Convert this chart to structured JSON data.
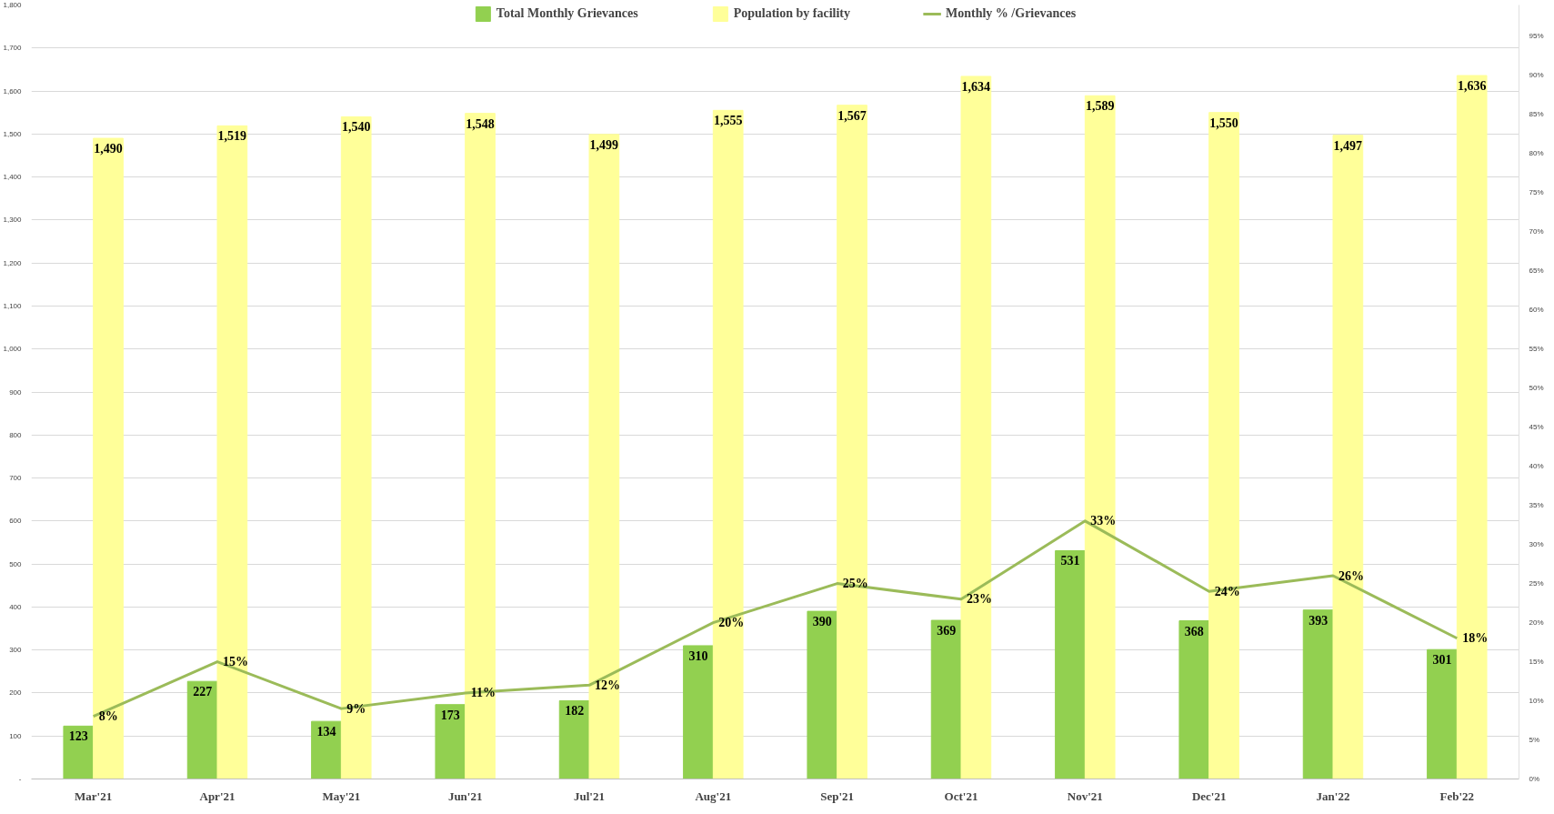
{
  "chart_data": {
    "type": "bar",
    "categories": [
      "Mar'21",
      "Apr'21",
      "May'21",
      "Jun'21",
      "Jul'21",
      "Aug'21",
      "Sep'21",
      "Oct'21",
      "Nov'21",
      "Dec'21",
      "Jan'22",
      "Feb'22"
    ],
    "series": [
      {
        "name": "Total Monthly Grievances",
        "color": "#92d050",
        "values": [
          123,
          227,
          134,
          173,
          182,
          310,
          390,
          369,
          531,
          368,
          393,
          301
        ],
        "value_labels": [
          "123",
          "227",
          "134",
          "173",
          "182",
          "310",
          "390",
          "369",
          "531",
          "368",
          "393",
          "301"
        ]
      },
      {
        "name": "Population by facility",
        "color": "#ffff99",
        "values": [
          1490,
          1519,
          1540,
          1548,
          1499,
          1555,
          1567,
          1634,
          1589,
          1550,
          1497,
          1636
        ],
        "value_labels": [
          "1,490",
          "1,519",
          "1,540",
          "1,548",
          "1,499",
          "1,555",
          "1,567",
          "1,634",
          "1,589",
          "1,550",
          "1,497",
          "1,636"
        ]
      },
      {
        "name": "Monthly % /Grievances",
        "type": "line",
        "axis": "y2",
        "color": "#9bbb59",
        "values": [
          8,
          15,
          9,
          11,
          12,
          20,
          25,
          23,
          33,
          24,
          26,
          18
        ],
        "value_labels": [
          "8%",
          "15%",
          "9%",
          "11%",
          "12%",
          "20%",
          "25%",
          "23%",
          "33%",
          "24%",
          "26%",
          "18%"
        ]
      }
    ],
    "ylim": [
      0,
      1800
    ],
    "yticks": [
      {
        "value": 0,
        "label": "-"
      },
      100,
      200,
      300,
      400,
      500,
      600,
      700,
      800,
      900,
      {
        "value": 1000,
        "label": "1,000"
      },
      {
        "value": 1100,
        "label": "1,100"
      },
      {
        "value": 1200,
        "label": "1,200"
      },
      {
        "value": 1300,
        "label": "1,300"
      },
      {
        "value": 1400,
        "label": "1,400"
      },
      {
        "value": 1500,
        "label": "1,500"
      },
      {
        "value": 1600,
        "label": "1,600"
      },
      {
        "value": 1700,
        "label": "1,700"
      },
      {
        "value": 1800,
        "label": "1,800"
      }
    ],
    "y2lim": [
      0,
      99
    ],
    "y2ticks": [
      {
        "value": 0,
        "label": "0%"
      },
      {
        "value": 5,
        "label": "5%"
      },
      {
        "value": 10,
        "label": "10%"
      },
      {
        "value": 15,
        "label": "15%"
      },
      {
        "value": 20,
        "label": "20%"
      },
      {
        "value": 25,
        "label": "25%"
      },
      {
        "value": 30,
        "label": "30%"
      },
      {
        "value": 35,
        "label": "35%"
      },
      {
        "value": 40,
        "label": "40%"
      },
      {
        "value": 45,
        "label": "45%"
      },
      {
        "value": 50,
        "label": "50%"
      },
      {
        "value": 55,
        "label": "55%"
      },
      {
        "value": 60,
        "label": "60%"
      },
      {
        "value": 65,
        "label": "65%"
      },
      {
        "value": 70,
        "label": "70%"
      },
      {
        "value": 75,
        "label": "75%"
      },
      {
        "value": 80,
        "label": "80%"
      },
      {
        "value": 85,
        "label": "85%"
      },
      {
        "value": 90,
        "label": "90%"
      },
      {
        "value": 95,
        "label": "95%"
      }
    ],
    "grid": "y",
    "legend": "top",
    "marker": "none",
    "line_style": "solid"
  }
}
